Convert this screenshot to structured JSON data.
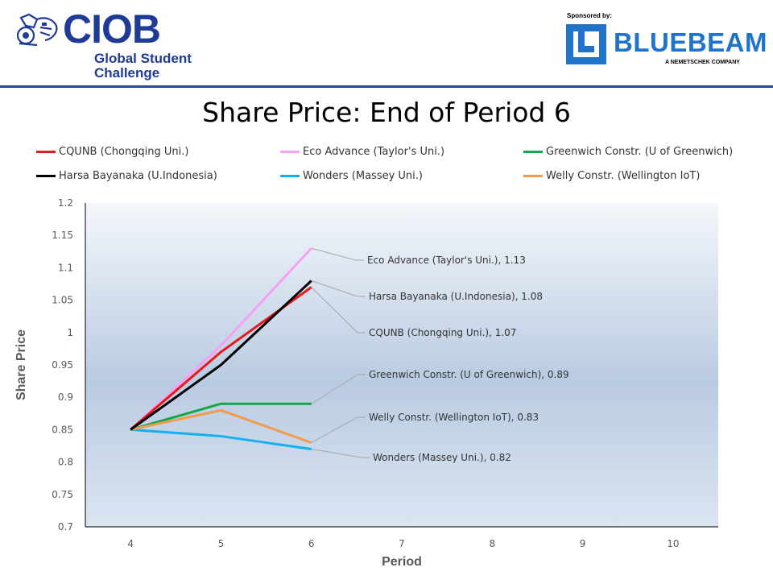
{
  "brand": {
    "name": "CIOB",
    "subtitle_line1": "Global Student",
    "subtitle_line2": "Challenge",
    "sponsored_label": "Sponsored by:",
    "sponsor_name": "BLUEBEAM",
    "sponsor_tagline": "A NEMETSCHEK COMPANY"
  },
  "colors": {
    "brand_blue": "#1f3b95",
    "sponsor_blue": "#1f74c9"
  },
  "chart_data": {
    "type": "line",
    "title": "Share Price: End of Period 6",
    "xlabel": "Period",
    "ylabel": "Share Price",
    "x": [
      4,
      5,
      6
    ],
    "x_ticks": [
      "4",
      "5",
      "6",
      "7",
      "8",
      "9",
      "10"
    ],
    "xlim": [
      3.5,
      10.5
    ],
    "ylim": [
      0.7,
      1.2
    ],
    "y_ticks": [
      "0.7",
      "0.75",
      "0.8",
      "0.85",
      "0.9",
      "0.95",
      "1",
      "1.05",
      "1.1",
      "1.15",
      "1.2"
    ],
    "grid": false,
    "legend_position": "top",
    "series": [
      {
        "name": "CQUNB (Chongqing Uni.)",
        "color": "#e8181b",
        "values": [
          0.85,
          0.97,
          1.07
        ],
        "end_label": "CQUNB (Chongqing Uni.), 1.07"
      },
      {
        "name": "Eco Advance (Taylor's Uni.)",
        "color": "#f7a1f4",
        "values": [
          0.85,
          0.98,
          1.13
        ],
        "end_label": "Eco Advance (Taylor's Uni.), 1.13"
      },
      {
        "name": "Greenwich Constr. (U of Greenwich)",
        "color": "#10a84a",
        "values": [
          0.85,
          0.89,
          0.89
        ],
        "end_label": "Greenwich Constr. (U of Greenwich),  0.89"
      },
      {
        "name": "Harsa Bayanaka (U.Indonesia)",
        "color": "#000000",
        "values": [
          0.85,
          0.95,
          1.08
        ],
        "end_label": "Harsa Bayanaka (U.Indonesia), 1.08"
      },
      {
        "name": "Wonders (Massey Uni.)",
        "color": "#12b0ef",
        "values": [
          0.85,
          0.84,
          0.82
        ],
        "end_label": "Wonders (Massey Uni.), 0.82"
      },
      {
        "name": "Welly Constr. (Wellington IoT)",
        "color": "#f39a4c",
        "values": [
          0.85,
          0.88,
          0.83
        ],
        "end_label": "Welly Constr. (Wellington IoT), 0.83"
      }
    ]
  }
}
